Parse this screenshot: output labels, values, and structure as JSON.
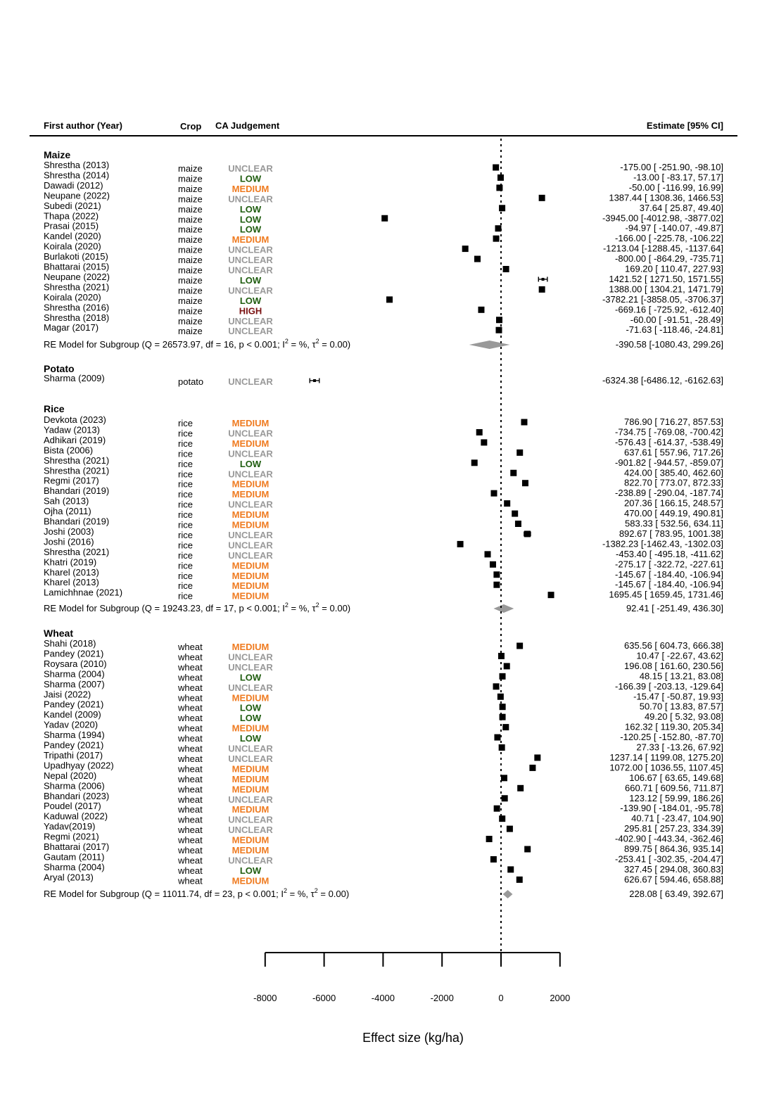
{
  "chart_data": {
    "type": "forest",
    "xlabel": "Effect size (kg/ha)",
    "xlim": [
      -8000,
      2000
    ],
    "xticks": [
      -8000,
      -6000,
      -4000,
      -2000,
      0,
      2000
    ],
    "reference_line": 0,
    "headers": {
      "author": "First author (Year)",
      "crop": "Crop",
      "judgement": "CA Judgement",
      "estimate": "Estimate [95% CI]"
    },
    "colors": {
      "UNCLEAR": "#999999",
      "LOW": "#1e5c0e",
      "MEDIUM": "#ef7b20",
      "HIGH": "#7a1212",
      "diamond": "#999999",
      "marker": "#000000"
    },
    "groups": [
      {
        "name": "Maize",
        "studies": [
          {
            "author": "Shrestha (2013)",
            "crop": "maize",
            "judgement": "UNCLEAR",
            "est": -175.0,
            "lo": -251.9,
            "hi": -98.1,
            "label": "-175.00 [ -251.90,   -98.10]"
          },
          {
            "author": "Shrestha (2014)",
            "crop": "maize",
            "judgement": "LOW",
            "est": -13.0,
            "lo": -83.17,
            "hi": 57.17,
            "label": "-13.00 [  -83.17,    57.17]"
          },
          {
            "author": "Dawadi (2012)",
            "crop": "maize",
            "judgement": "MEDIUM",
            "est": -50.0,
            "lo": -116.99,
            "hi": 16.99,
            "label": "-50.00 [ -116.99,    16.99]"
          },
          {
            "author": "Neupane (2022)",
            "crop": "maize",
            "judgement": "UNCLEAR",
            "est": 1387.44,
            "lo": 1308.36,
            "hi": 1466.53,
            "label": "1387.44 [ 1308.36,  1466.53]"
          },
          {
            "author": "Subedi (2021)",
            "crop": "maize",
            "judgement": "LOW",
            "est": 37.64,
            "lo": 25.87,
            "hi": 49.4,
            "label": "37.64 [   25.87,    49.40]"
          },
          {
            "author": "Thapa (2022)",
            "crop": "maize",
            "judgement": "LOW",
            "est": -3945.0,
            "lo": -4012.98,
            "hi": -3877.02,
            "label": "-3945.00 [-4012.98, -3877.02]"
          },
          {
            "author": "Prasai (2015)",
            "crop": "maize",
            "judgement": "LOW",
            "est": -94.97,
            "lo": -140.07,
            "hi": -49.87,
            "label": "-94.97 [ -140.07,   -49.87]"
          },
          {
            "author": "Kandel (2020)",
            "crop": "maize",
            "judgement": "MEDIUM",
            "est": -166.0,
            "lo": -225.78,
            "hi": -106.22,
            "label": "-166.00 [ -225.78,  -106.22]"
          },
          {
            "author": "Koirala (2020)",
            "crop": "maize",
            "judgement": "UNCLEAR",
            "est": -1213.04,
            "lo": -1288.45,
            "hi": -1137.64,
            "label": "-1213.04 [-1288.45, -1137.64]"
          },
          {
            "author": "Burlakoti (2015)",
            "crop": "maize",
            "judgement": "UNCLEAR",
            "est": -800.0,
            "lo": -864.29,
            "hi": -735.71,
            "label": "-800.00 [ -864.29,  -735.71]"
          },
          {
            "author": "Bhattarai (2015)",
            "crop": "maize",
            "judgement": "UNCLEAR",
            "est": 169.2,
            "lo": 110.47,
            "hi": 227.93,
            "label": "169.20 [  110.47,   227.93]"
          },
          {
            "author": "Neupane (2022)",
            "crop": "maize",
            "judgement": "LOW",
            "est": 1421.52,
            "lo": 1271.5,
            "hi": 1571.55,
            "label": "1421.52 [ 1271.50,  1571.55]"
          },
          {
            "author": "Shrestha (2021)",
            "crop": "maize",
            "judgement": "UNCLEAR",
            "est": 1388.0,
            "lo": 1304.21,
            "hi": 1471.79,
            "label": "1388.00 [ 1304.21,  1471.79]"
          },
          {
            "author": "Koirala (2020)",
            "crop": "maize",
            "judgement": "LOW",
            "est": -3782.21,
            "lo": -3858.05,
            "hi": -3706.37,
            "label": "-3782.21 [-3858.05, -3706.37]"
          },
          {
            "author": "Shrestha (2016)",
            "crop": "maize",
            "judgement": "HIGH",
            "est": -669.16,
            "lo": -725.92,
            "hi": -612.4,
            "label": "-669.16 [ -725.92,  -612.40]"
          },
          {
            "author": "Shrestha (2018)",
            "crop": "maize",
            "judgement": "UNCLEAR",
            "est": -60.0,
            "lo": -91.51,
            "hi": -28.49,
            "label": "-60.00 [  -91.51,   -28.49]"
          },
          {
            "author": "Magar (2017)",
            "crop": "maize",
            "judgement": "UNCLEAR",
            "est": -71.63,
            "lo": -118.46,
            "hi": -24.81,
            "label": "-71.63 [ -118.46,   -24.81]"
          }
        ],
        "summary": {
          "label": "RE Model for Subgroup (Q = 26573.97, df = 16, p < 0.001; I",
          "tail": " = %, τ",
          "end": " = 0.00)",
          "est": -390.58,
          "lo": -1080.43,
          "hi": 299.26,
          "value_label": "-390.58 [-1080.43,   299.26]"
        }
      },
      {
        "name": "Potato",
        "studies": [
          {
            "author": "Sharma (2009)",
            "crop": "potato",
            "judgement": "UNCLEAR",
            "est": -6324.38,
            "lo": -6486.12,
            "hi": -6162.63,
            "label": "-6324.38 [-6486.12, -6162.63]"
          }
        ]
      },
      {
        "name": "Rice",
        "studies": [
          {
            "author": "Devkota (2023)",
            "crop": "rice",
            "judgement": "MEDIUM",
            "est": 786.9,
            "lo": 716.27,
            "hi": 857.53,
            "label": "786.90 [  716.27,   857.53]"
          },
          {
            "author": "Yadaw (2013)",
            "crop": "rice",
            "judgement": "UNCLEAR",
            "est": -734.75,
            "lo": -769.08,
            "hi": -700.42,
            "label": "-734.75 [ -769.08,  -700.42]"
          },
          {
            "author": "Adhikari (2019)",
            "crop": "rice",
            "judgement": "MEDIUM",
            "est": -576.43,
            "lo": -614.37,
            "hi": -538.49,
            "label": "-576.43 [ -614.37,  -538.49]"
          },
          {
            "author": "Bista (2006)",
            "crop": "rice",
            "judgement": "UNCLEAR",
            "est": 637.61,
            "lo": 557.96,
            "hi": 717.26,
            "label": "637.61 [  557.96,   717.26]"
          },
          {
            "author": "Shrestha (2021)",
            "crop": "rice",
            "judgement": "LOW",
            "est": -901.82,
            "lo": -944.57,
            "hi": -859.07,
            "label": "-901.82 [ -944.57,  -859.07]"
          },
          {
            "author": "Shrestha (2021)",
            "crop": "rice",
            "judgement": "UNCLEAR",
            "est": 424.0,
            "lo": 385.4,
            "hi": 462.6,
            "label": "424.00 [  385.40,   462.60]"
          },
          {
            "author": "Regmi (2017)",
            "crop": "rice",
            "judgement": "MEDIUM",
            "est": 822.7,
            "lo": 773.07,
            "hi": 872.33,
            "label": "822.70 [  773.07,   872.33]"
          },
          {
            "author": "Bhandari (2019)",
            "crop": "rice",
            "judgement": "MEDIUM",
            "est": -238.89,
            "lo": -290.04,
            "hi": -187.74,
            "label": "-238.89 [ -290.04,  -187.74]"
          },
          {
            "author": "Sah (2013)",
            "crop": "rice",
            "judgement": "UNCLEAR",
            "est": 207.36,
            "lo": 166.15,
            "hi": 248.57,
            "label": "207.36 [  166.15,   248.57]"
          },
          {
            "author": "Ojha (2011)",
            "crop": "rice",
            "judgement": "MEDIUM",
            "est": 470.0,
            "lo": 449.19,
            "hi": 490.81,
            "label": "470.00 [  449.19,   490.81]"
          },
          {
            "author": "Bhandari (2019)",
            "crop": "rice",
            "judgement": "MEDIUM",
            "est": 583.33,
            "lo": 532.56,
            "hi": 634.11,
            "label": "583.33 [  532.56,   634.11]"
          },
          {
            "author": "Joshi (2003)",
            "crop": "rice",
            "judgement": "UNCLEAR",
            "est": 892.67,
            "lo": 783.95,
            "hi": 1001.38,
            "label": "892.67 [  783.95,  1001.38]"
          },
          {
            "author": "Joshi (2016)",
            "crop": "rice",
            "judgement": "UNCLEAR",
            "est": -1382.23,
            "lo": -1462.43,
            "hi": -1302.03,
            "label": "-1382.23 [-1462.43, -1302.03]"
          },
          {
            "author": "Shrestha (2021)",
            "crop": "rice",
            "judgement": "UNCLEAR",
            "est": -453.4,
            "lo": -495.18,
            "hi": -411.62,
            "label": "-453.40 [ -495.18,  -411.62]"
          },
          {
            "author": "Khatri (2019)",
            "crop": "rice",
            "judgement": "MEDIUM",
            "est": -275.17,
            "lo": -322.72,
            "hi": -227.61,
            "label": "-275.17 [ -322.72,  -227.61]"
          },
          {
            "author": "Kharel (2013)",
            "crop": "rice",
            "judgement": "MEDIUM",
            "est": -145.67,
            "lo": -184.4,
            "hi": -106.94,
            "label": "-145.67 [ -184.40,  -106.94]"
          },
          {
            "author": "Kharel (2013)",
            "crop": "rice",
            "judgement": "MEDIUM",
            "est": -145.67,
            "lo": -184.4,
            "hi": -106.94,
            "label": "-145.67 [ -184.40,  -106.94]"
          },
          {
            "author": "Lamichhnae (2021)",
            "crop": "rice",
            "judgement": "MEDIUM",
            "est": 1695.45,
            "lo": 1659.45,
            "hi": 1731.46,
            "label": "1695.45 [ 1659.45,  1731.46]"
          }
        ],
        "summary": {
          "label": "RE Model for Subgroup (Q = 19243.23, df = 17, p < 0.001; I",
          "tail": " = %, τ",
          "end": " = 0.00)",
          "est": 92.41,
          "lo": -251.49,
          "hi": 436.3,
          "value_label": "92.41 [ -251.49,   436.30]"
        }
      },
      {
        "name": "Wheat",
        "studies": [
          {
            "author": "Shahi (2018)",
            "crop": "wheat",
            "judgement": "MEDIUM",
            "est": 635.56,
            "lo": 604.73,
            "hi": 666.38,
            "label": "635.56 [  604.73,   666.38]"
          },
          {
            "author": "Pandey (2021)",
            "crop": "wheat",
            "judgement": "UNCLEAR",
            "est": 10.47,
            "lo": -22.67,
            "hi": 43.62,
            "label": "10.47 [  -22.67,    43.62]"
          },
          {
            "author": "Roysara (2010)",
            "crop": "wheat",
            "judgement": "UNCLEAR",
            "est": 196.08,
            "lo": 161.6,
            "hi": 230.56,
            "label": "196.08 [  161.60,   230.56]"
          },
          {
            "author": "Sharma (2004)",
            "crop": "wheat",
            "judgement": "LOW",
            "est": 48.15,
            "lo": 13.21,
            "hi": 83.08,
            "label": "48.15 [   13.21,    83.08]"
          },
          {
            "author": "Sharma (2007)",
            "crop": "wheat",
            "judgement": "UNCLEAR",
            "est": -166.39,
            "lo": -203.13,
            "hi": -129.64,
            "label": "-166.39 [ -203.13,  -129.64]"
          },
          {
            "author": "Jaisi (2022)",
            "crop": "wheat",
            "judgement": "MEDIUM",
            "est": -15.47,
            "lo": -50.87,
            "hi": 19.93,
            "label": "-15.47 [  -50.87,    19.93]"
          },
          {
            "author": "Pandey (2021)",
            "crop": "wheat",
            "judgement": "LOW",
            "est": 50.7,
            "lo": 13.83,
            "hi": 87.57,
            "label": "50.70 [   13.83,    87.57]"
          },
          {
            "author": "Kandel (2009)",
            "crop": "wheat",
            "judgement": "LOW",
            "est": 49.2,
            "lo": 5.32,
            "hi": 93.08,
            "label": "49.20 [    5.32,    93.08]"
          },
          {
            "author": "Yadav (2020)",
            "crop": "wheat",
            "judgement": "MEDIUM",
            "est": 162.32,
            "lo": 119.3,
            "hi": 205.34,
            "label": "162.32 [  119.30,   205.34]"
          },
          {
            "author": "Sharma (1994)",
            "crop": "wheat",
            "judgement": "LOW",
            "est": -120.25,
            "lo": -152.8,
            "hi": -87.7,
            "label": "-120.25 [ -152.80,   -87.70]"
          },
          {
            "author": "Pandey (2021)",
            "crop": "wheat",
            "judgement": "UNCLEAR",
            "est": 27.33,
            "lo": -13.26,
            "hi": 67.92,
            "label": "27.33 [  -13.26,    67.92]"
          },
          {
            "author": "Tripathi (2017)",
            "crop": "wheat",
            "judgement": "UNCLEAR",
            "est": 1237.14,
            "lo": 1199.08,
            "hi": 1275.2,
            "label": "1237.14 [ 1199.08,  1275.20]"
          },
          {
            "author": "Upadhyay (2022)",
            "crop": "wheat",
            "judgement": "MEDIUM",
            "est": 1072.0,
            "lo": 1036.55,
            "hi": 1107.45,
            "label": "1072.00 [ 1036.55,  1107.45]"
          },
          {
            "author": "Nepal (2020)",
            "crop": "wheat",
            "judgement": "MEDIUM",
            "est": 106.67,
            "lo": 63.65,
            "hi": 149.68,
            "label": "106.67 [   63.65,   149.68]"
          },
          {
            "author": "Sharma (2006)",
            "crop": "wheat",
            "judgement": "MEDIUM",
            "est": 660.71,
            "lo": 609.56,
            "hi": 711.87,
            "label": "660.71 [  609.56,   711.87]"
          },
          {
            "author": "Bhandari (2023)",
            "crop": "wheat",
            "judgement": "UNCLEAR",
            "est": 123.12,
            "lo": 59.99,
            "hi": 186.26,
            "label": "123.12 [   59.99,   186.26]"
          },
          {
            "author": "Poudel (2017)",
            "crop": "wheat",
            "judgement": "MEDIUM",
            "est": -139.9,
            "lo": -184.01,
            "hi": -95.78,
            "label": "-139.90 [ -184.01,   -95.78]"
          },
          {
            "author": "Kaduwal (2022)",
            "crop": "wheat",
            "judgement": "UNCLEAR",
            "est": 40.71,
            "lo": -23.47,
            "hi": 104.9,
            "label": "40.71 [  -23.47,   104.90]"
          },
          {
            "author": "Yadav(2019)",
            "crop": "wheat",
            "judgement": "UNCLEAR",
            "est": 295.81,
            "lo": 257.23,
            "hi": 334.39,
            "label": "295.81 [  257.23,   334.39]"
          },
          {
            "author": "Regmi (2021)",
            "crop": "wheat",
            "judgement": "MEDIUM",
            "est": -402.9,
            "lo": -443.34,
            "hi": -362.46,
            "label": "-402.90 [ -443.34,  -362.46]"
          },
          {
            "author": "Bhattarai (2017)",
            "crop": "wheat",
            "judgement": "MEDIUM",
            "est": 899.75,
            "lo": 864.36,
            "hi": 935.14,
            "label": "899.75 [  864.36,   935.14]"
          },
          {
            "author": "Gautam (2011)",
            "crop": "wheat",
            "judgement": "UNCLEAR",
            "est": -253.41,
            "lo": -302.35,
            "hi": -204.47,
            "label": "-253.41 [ -302.35,  -204.47]"
          },
          {
            "author": "Sharma (2004)",
            "crop": "wheat",
            "judgement": "LOW",
            "est": 327.45,
            "lo": 294.08,
            "hi": 360.83,
            "label": "327.45 [  294.08,   360.83]"
          },
          {
            "author": "Aryal (2013)",
            "crop": "wheat",
            "judgement": "MEDIUM",
            "est": 626.67,
            "lo": 594.46,
            "hi": 658.88,
            "label": "626.67 [  594.46,   658.88]"
          }
        ],
        "summary": {
          "label": "RE Model for Subgroup (Q = 11011.74, df = 23, p < 0.001; I",
          "tail": " = %, τ",
          "end": " = 0.00)",
          "est": 228.08,
          "lo": 63.49,
          "hi": 392.67,
          "value_label": "228.08 [   63.49,   392.67]"
        }
      }
    ]
  }
}
